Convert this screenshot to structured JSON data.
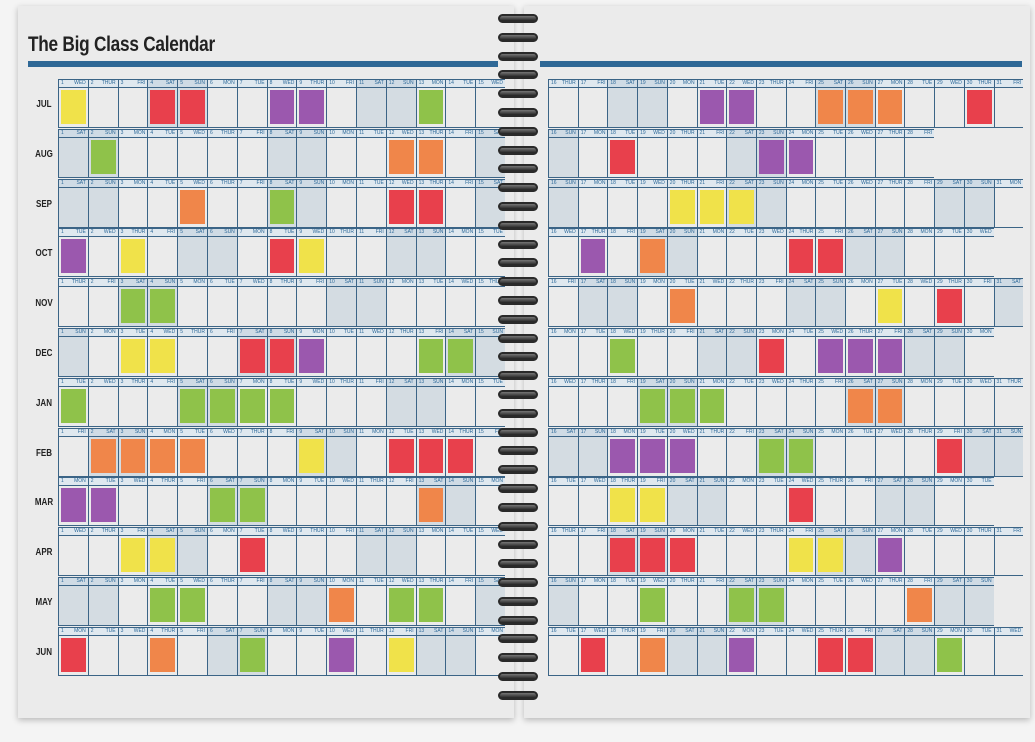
{
  "title": "The Big Class Calendar",
  "colors": {
    "Y": "#f0e24a",
    "R": "#e8404c",
    "P": "#9b58ae",
    "G": "#8fc24a",
    "O": "#f0864a",
    "accent": "#2f6896"
  },
  "months": [
    {
      "label": "JUL",
      "days": [
        "WED",
        "THUR",
        "FRI",
        "SAT",
        "SUN",
        "MON",
        "TUE",
        "WED",
        "THUR",
        "FRI",
        "SAT",
        "SUN",
        "MON",
        "TUE",
        "WED",
        "THUR",
        "FRI",
        "SAT",
        "SUN",
        "MON",
        "TUE",
        "WED",
        "THUR",
        "FRI",
        "SAT",
        "SUN",
        "MON",
        "TUE",
        "WED",
        "THUR",
        "FRI"
      ],
      "events": {
        "1": "Y",
        "4": "R",
        "5": "R",
        "8": "P",
        "9": "P",
        "13": "G",
        "21": "P",
        "22": "P",
        "25": "O",
        "26": "O",
        "27": "O",
        "30": "R"
      }
    },
    {
      "label": "AUG",
      "days": [
        "SAT",
        "SUN",
        "MON",
        "TUE",
        "WED",
        "THUR",
        "FRI",
        "SAT",
        "SUN",
        "MON",
        "TUE",
        "WED",
        "THUR",
        "FRI",
        "SAT",
        "SUN",
        "MON",
        "TUE",
        "WED",
        "THUR",
        "FRI",
        "SAT",
        "SUN",
        "MON",
        "TUE",
        "WED",
        "THUR",
        "FRI"
      ],
      "events": {
        "2": "G",
        "12": "O",
        "13": "O",
        "18": "R",
        "23": "P",
        "24": "P"
      }
    },
    {
      "label": "SEP",
      "days": [
        "SAT",
        "SUN",
        "MON",
        "TUE",
        "WED",
        "THUR",
        "FRI",
        "SAT",
        "SUN",
        "MON",
        "TUE",
        "WED",
        "THUR",
        "FRI",
        "SAT",
        "SUN",
        "MON",
        "TUE",
        "WED",
        "THUR",
        "FRI",
        "SAT",
        "SUN",
        "MON",
        "TUE",
        "WED",
        "THUR",
        "FRI",
        "SAT",
        "SUN",
        "MON"
      ],
      "events": {
        "5": "O",
        "8": "G",
        "12": "R",
        "13": "R",
        "20": "Y",
        "21": "Y",
        "22": "Y"
      }
    },
    {
      "label": "OCT",
      "days": [
        "TUE",
        "WED",
        "THUR",
        "FRI",
        "SAT",
        "SUN",
        "MON",
        "TUE",
        "WED",
        "THUR",
        "FRI",
        "SAT",
        "SUN",
        "MON",
        "TUE",
        "WED",
        "THUR",
        "FRI",
        "SAT",
        "SUN",
        "MON",
        "TUE",
        "WED",
        "THUR",
        "FRI",
        "SAT",
        "SUN",
        "MON",
        "TUE",
        "WED"
      ],
      "events": {
        "1": "P",
        "3": "Y",
        "8": "R",
        "9": "Y",
        "17": "P",
        "19": "O",
        "24": "R",
        "25": "R"
      }
    },
    {
      "label": "NOV",
      "days": [
        "THUR",
        "FRI",
        "SAT",
        "SUN",
        "MON",
        "TUE",
        "WED",
        "THUR",
        "FRI",
        "SAT",
        "SUN",
        "MON",
        "TUE",
        "WED",
        "THUR",
        "FRI",
        "SAT",
        "SUN",
        "MON",
        "TUE",
        "WED",
        "THUR",
        "FRI",
        "SAT",
        "SUN",
        "MON",
        "TUE",
        "WED",
        "THUR",
        "FRI",
        "SAT"
      ],
      "events": {
        "3": "G",
        "4": "G",
        "20": "O",
        "27": "Y",
        "29": "R"
      }
    },
    {
      "label": "DEC",
      "days": [
        "SUN",
        "MON",
        "TUE",
        "WED",
        "THUR",
        "FRI",
        "SAT",
        "SUN",
        "MON",
        "TUE",
        "WED",
        "THUR",
        "FRI",
        "SAT",
        "SUN",
        "MON",
        "TUE",
        "WED",
        "THUR",
        "FRI",
        "SAT",
        "SUN",
        "MON",
        "TUE",
        "WED",
        "THUR",
        "FRI",
        "SAT",
        "SUN",
        "MON"
      ],
      "events": {
        "3": "Y",
        "4": "Y",
        "7": "R",
        "8": "R",
        "9": "P",
        "13": "G",
        "14": "G",
        "18": "G",
        "23": "R",
        "25": "P",
        "26": "P",
        "27": "P"
      }
    },
    {
      "label": "JAN",
      "days": [
        "TUE",
        "WED",
        "THUR",
        "FRI",
        "SAT",
        "SUN",
        "MON",
        "TUE",
        "WED",
        "THUR",
        "FRI",
        "SAT",
        "SUN",
        "MON",
        "TUE",
        "WED",
        "THUR",
        "FRI",
        "SAT",
        "SUN",
        "MON",
        "TUE",
        "WED",
        "THUR",
        "FRI",
        "SAT",
        "SUN",
        "MON",
        "TUE",
        "WED",
        "THUR"
      ],
      "events": {
        "1": "G",
        "5": "G",
        "6": "G",
        "7": "G",
        "8": "G",
        "19": "G",
        "20": "G",
        "21": "G",
        "26": "O",
        "27": "O"
      }
    },
    {
      "label": "FEB",
      "days": [
        "FRI",
        "SAT",
        "SUN",
        "MON",
        "TUE",
        "WED",
        "THUR",
        "FRI",
        "SAT",
        "SUN",
        "MON",
        "TUE",
        "WED",
        "THUR",
        "FRI",
        "SAT",
        "SUN",
        "MON",
        "TUE",
        "WED",
        "THUR",
        "FRI",
        "SAT",
        "SUN",
        "MON",
        "TUE",
        "WED",
        "THUR",
        "FRI",
        "SAT",
        "SUN"
      ],
      "events": {
        "2": "O",
        "3": "O",
        "4": "O",
        "5": "O",
        "9": "Y",
        "12": "R",
        "13": "R",
        "14": "R",
        "18": "P",
        "19": "P",
        "20": "P",
        "23": "G",
        "24": "G",
        "29": "R"
      }
    },
    {
      "label": "MAR",
      "days": [
        "MON",
        "TUE",
        "WED",
        "THUR",
        "FRI",
        "SAT",
        "SUN",
        "MON",
        "TUE",
        "WED",
        "THUR",
        "FRI",
        "SAT",
        "SUN",
        "MON",
        "TUE",
        "WED",
        "THUR",
        "FRI",
        "SAT",
        "SUN",
        "MON",
        "TUE",
        "WED",
        "THUR",
        "FRI",
        "SAT",
        "SUN",
        "MON",
        "TUE"
      ],
      "events": {
        "1": "P",
        "2": "P",
        "6": "G",
        "7": "G",
        "13": "O",
        "18": "Y",
        "19": "Y",
        "24": "R"
      }
    },
    {
      "label": "APR",
      "days": [
        "WED",
        "THUR",
        "FRI",
        "SAT",
        "SUN",
        "MON",
        "TUE",
        "WED",
        "THUR",
        "FRI",
        "SAT",
        "SUN",
        "MON",
        "TUE",
        "WED",
        "THUR",
        "FRI",
        "SAT",
        "SUN",
        "MON",
        "TUE",
        "WED",
        "THUR",
        "FRI",
        "SAT",
        "SUN",
        "MON",
        "TUE",
        "WED",
        "THUR",
        "FRI"
      ],
      "events": {
        "3": "Y",
        "4": "Y",
        "7": "R",
        "18": "R",
        "19": "R",
        "20": "R",
        "24": "Y",
        "25": "Y",
        "27": "P"
      }
    },
    {
      "label": "MAY",
      "days": [
        "SAT",
        "SUN",
        "MON",
        "TUE",
        "WED",
        "THUR",
        "FRI",
        "SAT",
        "SUN",
        "MON",
        "TUE",
        "WED",
        "THUR",
        "FRI",
        "SAT",
        "SUN",
        "MON",
        "TUE",
        "WED",
        "THUR",
        "FRI",
        "SAT",
        "SUN",
        "MON",
        "TUE",
        "WED",
        "THUR",
        "FRI",
        "SAT",
        "SUN"
      ],
      "events": {
        "4": "G",
        "5": "G",
        "10": "O",
        "12": "G",
        "13": "G",
        "19": "G",
        "22": "G",
        "23": "G",
        "28": "O"
      }
    },
    {
      "label": "JUN",
      "days": [
        "MON",
        "TUE",
        "WED",
        "THUR",
        "FRI",
        "SAT",
        "SUN",
        "MON",
        "TUE",
        "WED",
        "THUR",
        "FRI",
        "SAT",
        "SUN",
        "MON",
        "TUE",
        "WED",
        "THUR",
        "FRI",
        "SAT",
        "SUN",
        "MON",
        "TUE",
        "WED",
        "THUR",
        "FRI",
        "SAT",
        "SUN",
        "MON",
        "TUE",
        "WED"
      ],
      "events": {
        "1": "R",
        "4": "O",
        "7": "G",
        "10": "P",
        "12": "Y",
        "17": "R",
        "19": "O",
        "22": "P",
        "25": "R",
        "26": "R",
        "29": "G"
      }
    }
  ]
}
